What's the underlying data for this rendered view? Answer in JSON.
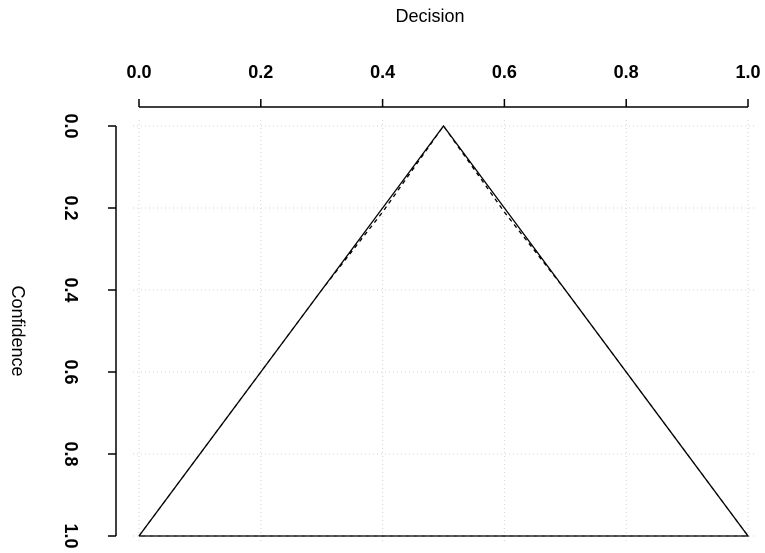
{
  "chart_data": {
    "type": "line",
    "title": "",
    "xlabel": "Decision",
    "ylabel": "Confidence",
    "x_axis_position": "top",
    "y_axis_reversed": true,
    "xlim": [
      0.0,
      1.0
    ],
    "ylim": [
      0.0,
      1.0
    ],
    "x_ticks": [
      "0.0",
      "0.2",
      "0.4",
      "0.6",
      "0.8",
      "1.0"
    ],
    "y_ticks": [
      "0.0",
      "0.2",
      "0.4",
      "0.6",
      "0.8",
      "1.0"
    ],
    "grid": true,
    "series": [
      {
        "line_style": "solid",
        "x": [
          0.0,
          0.5,
          1.0,
          0.0
        ],
        "y": [
          1.0,
          0.0,
          1.0,
          1.0
        ]
      },
      {
        "line_style": "dashed",
        "x": [
          0.0,
          0.1,
          0.2,
          0.3,
          0.4,
          0.5,
          0.6,
          0.7,
          0.8,
          0.9,
          1.0,
          0.0
        ],
        "y": [
          1.0,
          0.8,
          0.6,
          0.4,
          0.21,
          0.0,
          0.21,
          0.4,
          0.6,
          0.8,
          1.0,
          1.0
        ]
      }
    ],
    "colors": {
      "line": "#000000",
      "grid": "#d3d3d3"
    }
  }
}
